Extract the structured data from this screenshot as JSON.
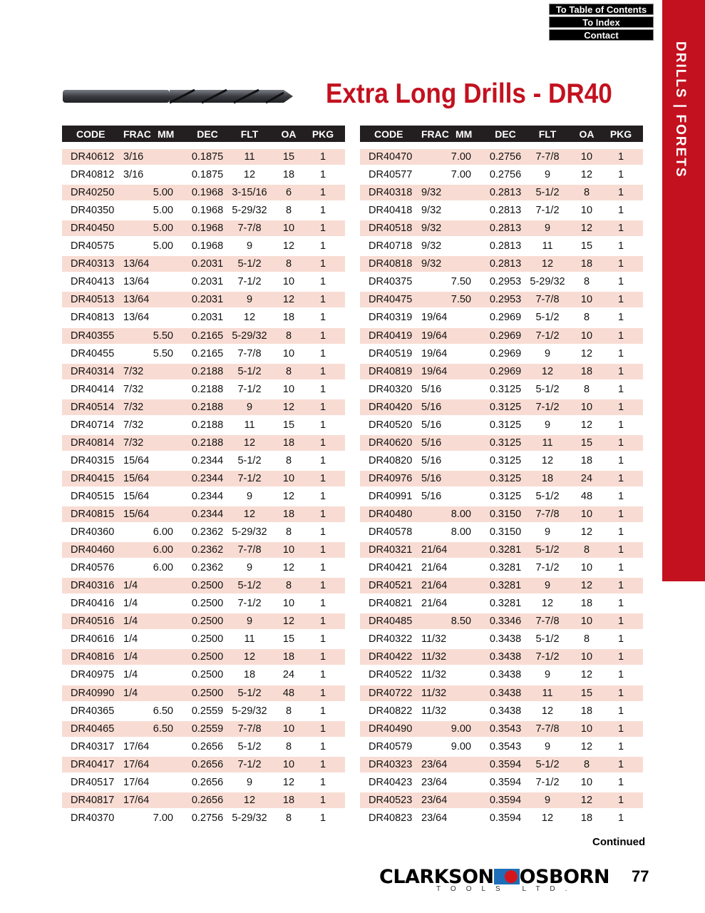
{
  "nav": {
    "toc": "To Table of Contents",
    "index": "To Index",
    "contact": "Contact"
  },
  "sidebar_label": "DRILLS | FORETS",
  "title": "Extra Long Drills - DR40",
  "colors": {
    "accent": "#c3111f",
    "row_stripe": "#f8dcd3",
    "header": "#231f20"
  },
  "columns": [
    "CODE",
    "FRAC",
    "MM",
    "DEC",
    "FLT",
    "OA",
    "PKG"
  ],
  "left_rows": [
    [
      "DR40612",
      "3/16",
      "",
      "0.1875",
      "11",
      "15",
      "1"
    ],
    [
      "DR40812",
      "3/16",
      "",
      "0.1875",
      "12",
      "18",
      "1"
    ],
    [
      "DR40250",
      "",
      "5.00",
      "0.1968",
      "3-15/16",
      "6",
      "1"
    ],
    [
      "DR40350",
      "",
      "5.00",
      "0.1968",
      "5-29/32",
      "8",
      "1"
    ],
    [
      "DR40450",
      "",
      "5.00",
      "0.1968",
      "7-7/8",
      "10",
      "1"
    ],
    [
      "DR40575",
      "",
      "5.00",
      "0.1968",
      "9",
      "12",
      "1"
    ],
    [
      "DR40313",
      "13/64",
      "",
      "0.2031",
      "5-1/2",
      "8",
      "1"
    ],
    [
      "DR40413",
      "13/64",
      "",
      "0.2031",
      "7-1/2",
      "10",
      "1"
    ],
    [
      "DR40513",
      "13/64",
      "",
      "0.2031",
      "9",
      "12",
      "1"
    ],
    [
      "DR40813",
      "13/64",
      "",
      "0.2031",
      "12",
      "18",
      "1"
    ],
    [
      "DR40355",
      "",
      "5.50",
      "0.2165",
      "5-29/32",
      "8",
      "1"
    ],
    [
      "DR40455",
      "",
      "5.50",
      "0.2165",
      "7-7/8",
      "10",
      "1"
    ],
    [
      "DR40314",
      "7/32",
      "",
      "0.2188",
      "5-1/2",
      "8",
      "1"
    ],
    [
      "DR40414",
      "7/32",
      "",
      "0.2188",
      "7-1/2",
      "10",
      "1"
    ],
    [
      "DR40514",
      "7/32",
      "",
      "0.2188",
      "9",
      "12",
      "1"
    ],
    [
      "DR40714",
      "7/32",
      "",
      "0.2188",
      "11",
      "15",
      "1"
    ],
    [
      "DR40814",
      "7/32",
      "",
      "0.2188",
      "12",
      "18",
      "1"
    ],
    [
      "DR40315",
      "15/64",
      "",
      "0.2344",
      "5-1/2",
      "8",
      "1"
    ],
    [
      "DR40415",
      "15/64",
      "",
      "0.2344",
      "7-1/2",
      "10",
      "1"
    ],
    [
      "DR40515",
      "15/64",
      "",
      "0.2344",
      "9",
      "12",
      "1"
    ],
    [
      "DR40815",
      "15/64",
      "",
      "0.2344",
      "12",
      "18",
      "1"
    ],
    [
      "DR40360",
      "",
      "6.00",
      "0.2362",
      "5-29/32",
      "8",
      "1"
    ],
    [
      "DR40460",
      "",
      "6.00",
      "0.2362",
      "7-7/8",
      "10",
      "1"
    ],
    [
      "DR40576",
      "",
      "6.00",
      "0.2362",
      "9",
      "12",
      "1"
    ],
    [
      "DR40316",
      "1/4",
      "",
      "0.2500",
      "5-1/2",
      "8",
      "1"
    ],
    [
      "DR40416",
      "1/4",
      "",
      "0.2500",
      "7-1/2",
      "10",
      "1"
    ],
    [
      "DR40516",
      "1/4",
      "",
      "0.2500",
      "9",
      "12",
      "1"
    ],
    [
      "DR40616",
      "1/4",
      "",
      "0.2500",
      "11",
      "15",
      "1"
    ],
    [
      "DR40816",
      "1/4",
      "",
      "0.2500",
      "12",
      "18",
      "1"
    ],
    [
      "DR40975",
      "1/4",
      "",
      "0.2500",
      "18",
      "24",
      "1"
    ],
    [
      "DR40990",
      "1/4",
      "",
      "0.2500",
      "5-1/2",
      "48",
      "1"
    ],
    [
      "DR40365",
      "",
      "6.50",
      "0.2559",
      "5-29/32",
      "8",
      "1"
    ],
    [
      "DR40465",
      "",
      "6.50",
      "0.2559",
      "7-7/8",
      "10",
      "1"
    ],
    [
      "DR40317",
      "17/64",
      "",
      "0.2656",
      "5-1/2",
      "8",
      "1"
    ],
    [
      "DR40417",
      "17/64",
      "",
      "0.2656",
      "7-1/2",
      "10",
      "1"
    ],
    [
      "DR40517",
      "17/64",
      "",
      "0.2656",
      "9",
      "12",
      "1"
    ],
    [
      "DR40817",
      "17/64",
      "",
      "0.2656",
      "12",
      "18",
      "1"
    ],
    [
      "DR40370",
      "",
      "7.00",
      "0.2756",
      "5-29/32",
      "8",
      "1"
    ]
  ],
  "right_rows": [
    [
      "DR40470",
      "",
      "7.00",
      "0.2756",
      "7-7/8",
      "10",
      "1"
    ],
    [
      "DR40577",
      "",
      "7.00",
      "0.2756",
      "9",
      "12",
      "1"
    ],
    [
      "DR40318",
      "9/32",
      "",
      "0.2813",
      "5-1/2",
      "8",
      "1"
    ],
    [
      "DR40418",
      "9/32",
      "",
      "0.2813",
      "7-1/2",
      "10",
      "1"
    ],
    [
      "DR40518",
      "9/32",
      "",
      "0.2813",
      "9",
      "12",
      "1"
    ],
    [
      "DR40718",
      "9/32",
      "",
      "0.2813",
      "11",
      "15",
      "1"
    ],
    [
      "DR40818",
      "9/32",
      "",
      "0.2813",
      "12",
      "18",
      "1"
    ],
    [
      "DR40375",
      "",
      "7.50",
      "0.2953",
      "5-29/32",
      "8",
      "1"
    ],
    [
      "DR40475",
      "",
      "7.50",
      "0.2953",
      "7-7/8",
      "10",
      "1"
    ],
    [
      "DR40319",
      "19/64",
      "",
      "0.2969",
      "5-1/2",
      "8",
      "1"
    ],
    [
      "DR40419",
      "19/64",
      "",
      "0.2969",
      "7-1/2",
      "10",
      "1"
    ],
    [
      "DR40519",
      "19/64",
      "",
      "0.2969",
      "9",
      "12",
      "1"
    ],
    [
      "DR40819",
      "19/64",
      "",
      "0.2969",
      "12",
      "18",
      "1"
    ],
    [
      "DR40320",
      "5/16",
      "",
      "0.3125",
      "5-1/2",
      "8",
      "1"
    ],
    [
      "DR40420",
      "5/16",
      "",
      "0.3125",
      "7-1/2",
      "10",
      "1"
    ],
    [
      "DR40520",
      "5/16",
      "",
      "0.3125",
      "9",
      "12",
      "1"
    ],
    [
      "DR40620",
      "5/16",
      "",
      "0.3125",
      "11",
      "15",
      "1"
    ],
    [
      "DR40820",
      "5/16",
      "",
      "0.3125",
      "12",
      "18",
      "1"
    ],
    [
      "DR40976",
      "5/16",
      "",
      "0.3125",
      "18",
      "24",
      "1"
    ],
    [
      "DR40991",
      "5/16",
      "",
      "0.3125",
      "5-1/2",
      "48",
      "1"
    ],
    [
      "DR40480",
      "",
      "8.00",
      "0.3150",
      "7-7/8",
      "10",
      "1"
    ],
    [
      "DR40578",
      "",
      "8.00",
      "0.3150",
      "9",
      "12",
      "1"
    ],
    [
      "DR40321",
      "21/64",
      "",
      "0.3281",
      "5-1/2",
      "8",
      "1"
    ],
    [
      "DR40421",
      "21/64",
      "",
      "0.3281",
      "7-1/2",
      "10",
      "1"
    ],
    [
      "DR40521",
      "21/64",
      "",
      "0.3281",
      "9",
      "12",
      "1"
    ],
    [
      "DR40821",
      "21/64",
      "",
      "0.3281",
      "12",
      "18",
      "1"
    ],
    [
      "DR40485",
      "",
      "8.50",
      "0.3346",
      "7-7/8",
      "10",
      "1"
    ],
    [
      "DR40322",
      "11/32",
      "",
      "0.3438",
      "5-1/2",
      "8",
      "1"
    ],
    [
      "DR40422",
      "11/32",
      "",
      "0.3438",
      "7-1/2",
      "10",
      "1"
    ],
    [
      "DR40522",
      "11/32",
      "",
      "0.3438",
      "9",
      "12",
      "1"
    ],
    [
      "DR40722",
      "11/32",
      "",
      "0.3438",
      "11",
      "15",
      "1"
    ],
    [
      "DR40822",
      "11/32",
      "",
      "0.3438",
      "12",
      "18",
      "1"
    ],
    [
      "DR40490",
      "",
      "9.00",
      "0.3543",
      "7-7/8",
      "10",
      "1"
    ],
    [
      "DR40579",
      "",
      "9.00",
      "0.3543",
      "9",
      "12",
      "1"
    ],
    [
      "DR40323",
      "23/64",
      "",
      "0.3594",
      "5-1/2",
      "8",
      "1"
    ],
    [
      "DR40423",
      "23/64",
      "",
      "0.3594",
      "7-1/2",
      "10",
      "1"
    ],
    [
      "DR40523",
      "23/64",
      "",
      "0.3594",
      "9",
      "12",
      "1"
    ],
    [
      "DR40823",
      "23/64",
      "",
      "0.3594",
      "12",
      "18",
      "1"
    ]
  ],
  "continued": "Continued",
  "logo": {
    "left": "CLARKSON",
    "right": "OSBORN",
    "sub": "TOOLS LTD."
  },
  "page_number": "77"
}
